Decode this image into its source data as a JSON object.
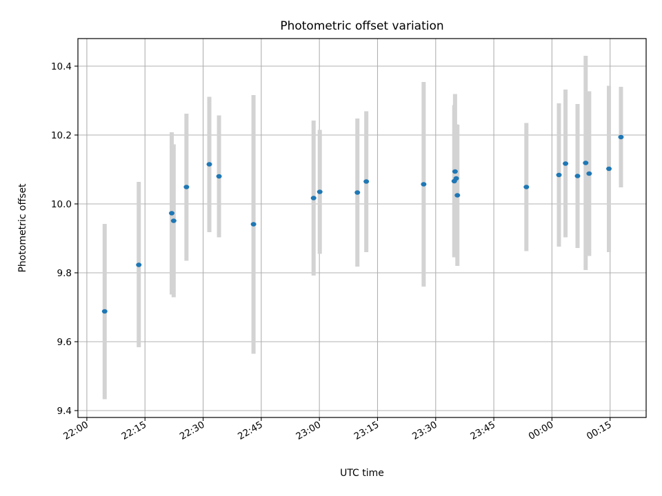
{
  "chart_data": {
    "type": "scatter",
    "title": "Photometric offset variation",
    "xlabel": "UTC time",
    "ylabel": "Photometric offset",
    "x_ticks": [
      "22:00",
      "22:15",
      "22:30",
      "22:45",
      "23:00",
      "23:15",
      "23:30",
      "23:45",
      "00:00",
      "00:15"
    ],
    "y_ticks": [
      "9.4",
      "9.6",
      "9.8",
      "10.0",
      "10.2",
      "10.4"
    ],
    "xlim": [
      "21:57.7",
      "00:24.3"
    ],
    "ylim": [
      9.38,
      10.48
    ],
    "grid": true,
    "series": [
      {
        "marker_color": "#1f77b4",
        "errorbar_color": "#d3d3d3",
        "points": [
          {
            "x": "22:04.6",
            "y": 9.688,
            "ylow": 9.433,
            "yhigh": 9.942
          },
          {
            "x": "22:13.4",
            "y": 9.823,
            "ylow": 9.584,
            "yhigh": 10.064
          },
          {
            "x": "22:21.9",
            "y": 9.973,
            "ylow": 9.737,
            "yhigh": 10.208
          },
          {
            "x": "22:22.4",
            "y": 9.951,
            "ylow": 9.729,
            "yhigh": 10.173
          },
          {
            "x": "22:25.7",
            "y": 10.049,
            "ylow": 9.835,
            "yhigh": 10.262
          },
          {
            "x": "22:31.6",
            "y": 10.115,
            "ylow": 9.918,
            "yhigh": 10.311
          },
          {
            "x": "22:34.1",
            "y": 10.08,
            "ylow": 9.903,
            "yhigh": 10.257
          },
          {
            "x": "22:43.0",
            "y": 9.941,
            "ylow": 9.565,
            "yhigh": 10.316
          },
          {
            "x": "22:58.5",
            "y": 10.017,
            "ylow": 9.792,
            "yhigh": 10.242
          },
          {
            "x": "23:00.1",
            "y": 10.035,
            "ylow": 9.855,
            "yhigh": 10.215
          },
          {
            "x": "23:09.8",
            "y": 10.033,
            "ylow": 9.818,
            "yhigh": 10.248
          },
          {
            "x": "23:12.1",
            "y": 10.065,
            "ylow": 9.86,
            "yhigh": 10.269
          },
          {
            "x": "23:26.9",
            "y": 10.057,
            "ylow": 9.76,
            "yhigh": 10.354
          },
          {
            "x": "23:34.8",
            "y": 10.066,
            "ylow": 9.845,
            "yhigh": 10.287
          },
          {
            "x": "23:35.0",
            "y": 10.094,
            "ylow": 9.868,
            "yhigh": 10.319
          },
          {
            "x": "23:35.3",
            "y": 10.074,
            "ylow": 9.916,
            "yhigh": 10.231
          },
          {
            "x": "23:35.6",
            "y": 10.025,
            "ylow": 9.82,
            "yhigh": 10.23
          },
          {
            "x": "23:53.4",
            "y": 10.049,
            "ylow": 9.863,
            "yhigh": 10.235
          },
          {
            "x": "00:01.8",
            "y": 10.084,
            "ylow": 9.876,
            "yhigh": 10.292
          },
          {
            "x": "00:03.5",
            "y": 10.117,
            "ylow": 9.903,
            "yhigh": 10.332
          },
          {
            "x": "00:06.6",
            "y": 10.081,
            "ylow": 9.872,
            "yhigh": 10.29
          },
          {
            "x": "00:08.7",
            "y": 10.119,
            "ylow": 9.808,
            "yhigh": 10.43
          },
          {
            "x": "00:09.6",
            "y": 10.088,
            "ylow": 9.849,
            "yhigh": 10.327
          },
          {
            "x": "00:14.7",
            "y": 10.102,
            "ylow": 9.86,
            "yhigh": 10.343
          },
          {
            "x": "00:17.8",
            "y": 10.194,
            "ylow": 10.048,
            "yhigh": 10.34
          }
        ]
      }
    ]
  }
}
